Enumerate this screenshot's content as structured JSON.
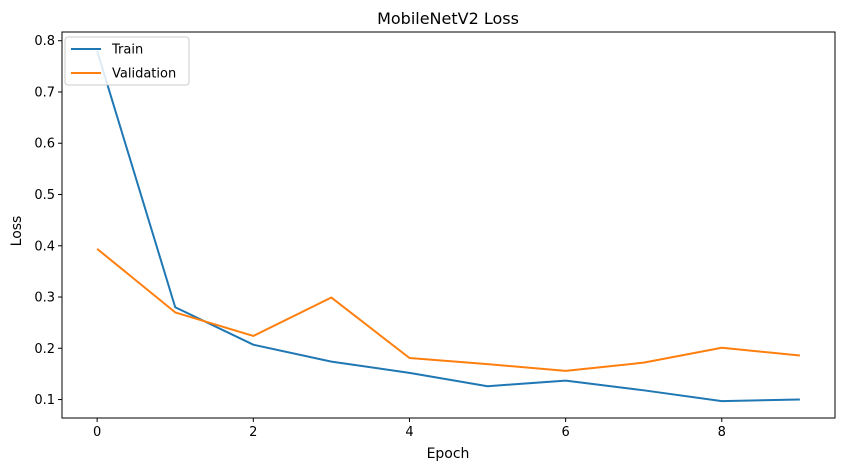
{
  "chart_data": {
    "type": "line",
    "title": "MobileNetV2 Loss",
    "xlabel": "Epoch",
    "ylabel": "Loss",
    "x": [
      0,
      1,
      2,
      3,
      4,
      5,
      6,
      7,
      8,
      9
    ],
    "xticks": [
      0,
      2,
      4,
      6,
      8
    ],
    "yticks": [
      0.1,
      0.2,
      0.3,
      0.4,
      0.5,
      0.6,
      0.7,
      0.8
    ],
    "xlim": [
      -0.45,
      9.45
    ],
    "ylim": [
      0.064,
      0.817
    ],
    "grid": false,
    "legend_position": "upper left",
    "series": [
      {
        "name": "Train",
        "color": "#1f77b4",
        "values": [
          0.78,
          0.28,
          0.207,
          0.174,
          0.152,
          0.126,
          0.137,
          0.118,
          0.097,
          0.1
        ]
      },
      {
        "name": "Validation",
        "color": "#ff7f0e",
        "values": [
          0.394,
          0.27,
          0.224,
          0.299,
          0.181,
          0.169,
          0.156,
          0.172,
          0.201,
          0.186
        ]
      }
    ]
  }
}
